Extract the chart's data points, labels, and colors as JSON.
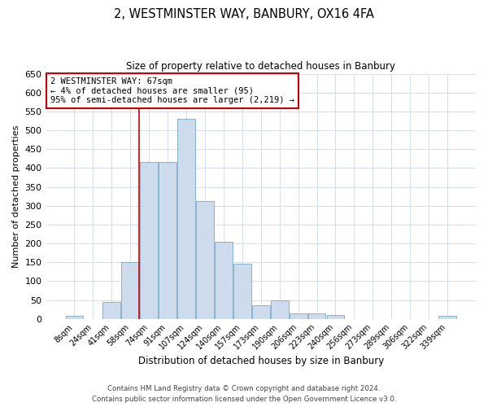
{
  "title": "2, WESTMINSTER WAY, BANBURY, OX16 4FA",
  "subtitle": "Size of property relative to detached houses in Banbury",
  "xlabel": "Distribution of detached houses by size in Banbury",
  "ylabel": "Number of detached properties",
  "bar_color": "#ccdcec",
  "bar_edge_color": "#7aaac8",
  "categories": [
    "8sqm",
    "24sqm",
    "41sqm",
    "58sqm",
    "74sqm",
    "91sqm",
    "107sqm",
    "124sqm",
    "140sqm",
    "157sqm",
    "173sqm",
    "190sqm",
    "206sqm",
    "223sqm",
    "240sqm",
    "256sqm",
    "273sqm",
    "289sqm",
    "306sqm",
    "322sqm",
    "339sqm"
  ],
  "values": [
    8,
    0,
    44,
    150,
    415,
    415,
    530,
    313,
    205,
    145,
    35,
    50,
    15,
    15,
    10,
    0,
    0,
    0,
    0,
    0,
    8
  ],
  "ylim": [
    0,
    650
  ],
  "yticks": [
    0,
    50,
    100,
    150,
    200,
    250,
    300,
    350,
    400,
    450,
    500,
    550,
    600,
    650
  ],
  "grid_color": "#d0d8e4",
  "annotation_text_line1": "2 WESTMINSTER WAY: 67sqm",
  "annotation_text_line2": "← 4% of detached houses are smaller (95)",
  "annotation_text_line3": "95% of semi-detached houses are larger (2,219) →",
  "footer_line1": "Contains HM Land Registry data © Crown copyright and database right 2024.",
  "footer_line2": "Contains public sector information licensed under the Open Government Licence v3.0."
}
